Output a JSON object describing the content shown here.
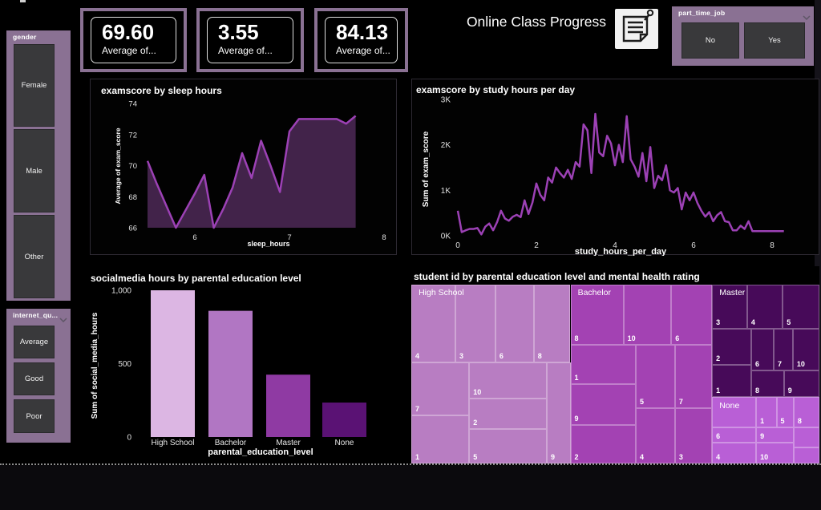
{
  "page": {
    "background": "#000000",
    "accent": "#8a7193",
    "line_purple": "#9c41b5",
    "area_fill": "#42234a"
  },
  "header": {
    "title": "Online Class Progress"
  },
  "kpis": [
    {
      "value": "69.60",
      "label": "Average of..."
    },
    {
      "value": "3.55",
      "label": "Average of..."
    },
    {
      "value": "84.13",
      "label": "Average of..."
    }
  ],
  "slicers": {
    "gender": {
      "label": "gender",
      "options": [
        "Female",
        "Male",
        "Other"
      ]
    },
    "internet_quality": {
      "label": "internet_qu...",
      "options": [
        "Average",
        "Good",
        "Poor"
      ]
    },
    "part_time_job": {
      "label": "part_time_job",
      "options": [
        "No",
        "Yes"
      ]
    }
  },
  "chart_data": [
    {
      "id": "sleep",
      "type": "area",
      "title": "examscore by sleep hours",
      "xlabel": "sleep_hours",
      "ylabel": "Average of exam_score",
      "xticks": [
        6,
        7,
        8
      ],
      "yticks": [
        66,
        68,
        70,
        72,
        74
      ],
      "xlim": [
        5.45,
        8.05
      ],
      "ylim": [
        66,
        74
      ],
      "line_color": "#9c41b5",
      "fill_color": "#42234a",
      "points": [
        [
          5.5,
          70.3
        ],
        [
          5.6,
          68.8
        ],
        [
          5.7,
          67.4
        ],
        [
          5.8,
          66.0
        ],
        [
          5.9,
          67.1
        ],
        [
          6.0,
          68.2
        ],
        [
          6.1,
          69.4
        ],
        [
          6.2,
          66.0
        ],
        [
          6.3,
          67.2
        ],
        [
          6.4,
          68.6
        ],
        [
          6.5,
          70.8
        ],
        [
          6.6,
          69.2
        ],
        [
          6.7,
          71.6
        ],
        [
          6.8,
          70.0
        ],
        [
          6.9,
          68.3
        ],
        [
          7.0,
          72.2
        ],
        [
          7.1,
          73.0
        ],
        [
          7.2,
          73.0
        ],
        [
          7.3,
          73.0
        ],
        [
          7.4,
          73.0
        ],
        [
          7.5,
          73.0
        ],
        [
          7.6,
          72.7
        ],
        [
          7.7,
          73.2
        ]
      ]
    },
    {
      "id": "study",
      "type": "line",
      "title": "examscore by study hours per day",
      "xlabel": "study_hours_per_day",
      "ylabel": "Sum of exam_score",
      "xticks": [
        0,
        2,
        4,
        6,
        8
      ],
      "yticks": [
        0,
        1,
        2,
        3
      ],
      "ytick_labels": [
        "0K",
        "1K",
        "2K",
        "3K"
      ],
      "xlim": [
        0,
        8.3
      ],
      "ylim": [
        0,
        3.1
      ],
      "line_color": "#9c41b5",
      "points": [
        [
          0,
          0.55
        ],
        [
          0.1,
          0.08
        ],
        [
          0.2,
          0.12
        ],
        [
          0.3,
          0.15
        ],
        [
          0.4,
          0.15
        ],
        [
          0.5,
          0.17
        ],
        [
          0.6,
          0.03
        ],
        [
          0.7,
          0.2
        ],
        [
          0.8,
          0.27
        ],
        [
          0.9,
          0.12
        ],
        [
          1,
          0.3
        ],
        [
          1.1,
          0.55
        ],
        [
          1.2,
          0.38
        ],
        [
          1.3,
          0.33
        ],
        [
          1.4,
          0.42
        ],
        [
          1.5,
          0.46
        ],
        [
          1.6,
          0.41
        ],
        [
          1.7,
          0.78
        ],
        [
          1.8,
          0.48
        ],
        [
          1.9,
          0.73
        ],
        [
          2,
          1.15
        ],
        [
          2.1,
          0.9
        ],
        [
          2.2,
          0.78
        ],
        [
          2.3,
          1.28
        ],
        [
          2.4,
          1.17
        ],
        [
          2.5,
          1.5
        ],
        [
          2.6,
          1.38
        ],
        [
          2.7,
          1.28
        ],
        [
          2.8,
          1.45
        ],
        [
          2.9,
          1.25
        ],
        [
          3,
          1.62
        ],
        [
          3.1,
          1.52
        ],
        [
          3.2,
          2.45
        ],
        [
          3.3,
          2.32
        ],
        [
          3.4,
          1.38
        ],
        [
          3.5,
          2.68
        ],
        [
          3.6,
          1.83
        ],
        [
          3.7,
          1.75
        ],
        [
          3.8,
          2.2
        ],
        [
          3.9,
          2.03
        ],
        [
          4,
          1.55
        ],
        [
          4.1,
          2.0
        ],
        [
          4.2,
          1.62
        ],
        [
          4.3,
          2.63
        ],
        [
          4.4,
          1.68
        ],
        [
          4.5,
          1.52
        ],
        [
          4.6,
          1.3
        ],
        [
          4.7,
          1.82
        ],
        [
          4.8,
          1.2
        ],
        [
          4.9,
          1.95
        ],
        [
          5,
          1.05
        ],
        [
          5.1,
          1.32
        ],
        [
          5.2,
          1.22
        ],
        [
          5.3,
          1.55
        ],
        [
          5.4,
          1.0
        ],
        [
          5.5,
          0.95
        ],
        [
          5.6,
          1.05
        ],
        [
          5.7,
          0.58
        ],
        [
          5.8,
          0.95
        ],
        [
          5.9,
          0.78
        ],
        [
          6,
          0.95
        ],
        [
          6.1,
          0.72
        ],
        [
          6.2,
          0.55
        ],
        [
          6.3,
          0.42
        ],
        [
          6.4,
          0.52
        ],
        [
          6.5,
          0.32
        ],
        [
          6.6,
          0.45
        ],
        [
          6.7,
          0.52
        ],
        [
          6.8,
          0.32
        ],
        [
          6.9,
          0.3
        ],
        [
          7,
          0.12
        ],
        [
          7.1,
          0.12
        ],
        [
          7.2,
          0.22
        ],
        [
          7.3,
          0.15
        ],
        [
          7.4,
          0.32
        ],
        [
          7.5,
          0.1
        ],
        [
          7.6,
          0.1
        ],
        [
          7.7,
          0.1
        ],
        [
          7.8,
          0.1
        ],
        [
          7.9,
          0.1
        ],
        [
          8,
          0.1
        ],
        [
          8.1,
          0.1
        ],
        [
          8.2,
          0.1
        ],
        [
          8.3,
          0.1
        ]
      ]
    },
    {
      "id": "bars",
      "type": "bar",
      "title": "socialmedia hours by parental education level",
      "xlabel": "parental_education_level",
      "ylabel": "Sum of social_media_hours",
      "categories": [
        "High School",
        "Bachelor",
        "Master",
        "None"
      ],
      "values": [
        1000,
        860,
        425,
        235
      ],
      "bar_colors": [
        "#dcb6e3",
        "#b176c3",
        "#8f3aa3",
        "#5a1274"
      ],
      "yticks": [
        0,
        500,
        1000
      ],
      "ytick_labels": [
        "0",
        "500",
        "1,000"
      ],
      "ylim": [
        0,
        1000
      ]
    },
    {
      "id": "treemap",
      "type": "treemap",
      "title": "student id by parental education level and mental health rating",
      "groups": [
        {
          "name": "High School",
          "color": "#b87dc2",
          "label_at": [
            0.8,
            0.5
          ],
          "cells": [
            {
              "l": "4",
              "x": 0,
              "y": 0,
              "w": 10.8,
              "h": 43.5
            },
            {
              "l": "3",
              "x": 10.8,
              "y": 0,
              "w": 9.8,
              "h": 43.5
            },
            {
              "l": "6",
              "x": 20.6,
              "y": 0,
              "w": 9.4,
              "h": 43.5
            },
            {
              "l": "8",
              "x": 30,
              "y": 0,
              "w": 9,
              "h": 43.5
            },
            {
              "l": "7",
              "x": 0,
              "y": 43.5,
              "w": 14.2,
              "h": 29.5
            },
            {
              "l": "1",
              "x": 0,
              "y": 73,
              "w": 14.2,
              "h": 27
            },
            {
              "l": "10",
              "x": 14.2,
              "y": 43.5,
              "w": 19,
              "h": 20
            },
            {
              "l": "2",
              "x": 14.2,
              "y": 63.5,
              "w": 19,
              "h": 17
            },
            {
              "l": "5",
              "x": 14.2,
              "y": 80.5,
              "w": 19,
              "h": 19.5
            },
            {
              "l": "9",
              "x": 33.2,
              "y": 43.5,
              "w": 5.8,
              "h": 56.5
            }
          ]
        },
        {
          "name": "Bachelor",
          "color": "#a342b3",
          "label_at": [
            39.8,
            0.5
          ],
          "cells": [
            {
              "l": "8",
              "x": 39,
              "y": 0,
              "w": 13,
              "h": 33.6
            },
            {
              "l": "10",
              "x": 52,
              "y": 0,
              "w": 11.7,
              "h": 33.6
            },
            {
              "l": "6",
              "x": 63.7,
              "y": 0,
              "w": 10,
              "h": 33.6
            },
            {
              "l": "1",
              "x": 39,
              "y": 33.6,
              "w": 16,
              "h": 22
            },
            {
              "l": "9",
              "x": 39,
              "y": 55.6,
              "w": 16,
              "h": 22.9
            },
            {
              "l": "2",
              "x": 39,
              "y": 78.5,
              "w": 16,
              "h": 21.5
            },
            {
              "l": "5",
              "x": 55,
              "y": 33.6,
              "w": 9.6,
              "h": 35.4
            },
            {
              "l": "7",
              "x": 64.6,
              "y": 33.6,
              "w": 9.1,
              "h": 35.4
            },
            {
              "l": "4",
              "x": 55,
              "y": 69,
              "w": 9.6,
              "h": 31
            },
            {
              "l": "3",
              "x": 64.6,
              "y": 69,
              "w": 9.1,
              "h": 31
            }
          ]
        },
        {
          "name": "Master",
          "color": "#470a59",
          "label_at": [
            74.5,
            0.5
          ],
          "cells": [
            {
              "l": "3",
              "x": 73.7,
              "y": 0,
              "w": 8.6,
              "h": 24.7
            },
            {
              "l": "4",
              "x": 82.3,
              "y": 0,
              "w": 8.7,
              "h": 24.7
            },
            {
              "l": "5",
              "x": 91,
              "y": 0,
              "w": 9,
              "h": 24.7
            },
            {
              "l": "2",
              "x": 73.7,
              "y": 24.7,
              "w": 9.6,
              "h": 20.3
            },
            {
              "l": "1",
              "x": 73.7,
              "y": 45,
              "w": 9.6,
              "h": 18
            },
            {
              "l": "6",
              "x": 83.3,
              "y": 24.7,
              "w": 5.5,
              "h": 23.3
            },
            {
              "l": "7",
              "x": 88.8,
              "y": 24.7,
              "w": 4.7,
              "h": 23.3
            },
            {
              "l": "10",
              "x": 93.5,
              "y": 24.7,
              "w": 6.5,
              "h": 23.3
            },
            {
              "l": "8",
              "x": 83.3,
              "y": 48,
              "w": 8,
              "h": 15
            },
            {
              "l": "9",
              "x": 91.3,
              "y": 48,
              "w": 8.7,
              "h": 15
            }
          ]
        },
        {
          "name": "None",
          "color": "#b95fd6",
          "label_at": [
            74.5,
            63.5
          ],
          "cells": [
            {
              "l": "",
              "x": 73.7,
              "y": 63,
              "w": 10.8,
              "h": 17
            },
            {
              "l": "1",
              "x": 84.5,
              "y": 63,
              "w": 5,
              "h": 17
            },
            {
              "l": "5",
              "x": 89.5,
              "y": 63,
              "w": 4.2,
              "h": 17
            },
            {
              "l": "8",
              "x": 93.7,
              "y": 63,
              "w": 6.3,
              "h": 17
            },
            {
              "l": "6",
              "x": 73.7,
              "y": 80,
              "w": 10.8,
              "h": 8.5
            },
            {
              "l": "4",
              "x": 73.7,
              "y": 88.5,
              "w": 10.8,
              "h": 11.5
            },
            {
              "l": "9",
              "x": 84.5,
              "y": 80,
              "w": 9.2,
              "h": 8.5
            },
            {
              "l": "10",
              "x": 84.5,
              "y": 88.5,
              "w": 9.2,
              "h": 11.5
            },
            {
              "l": "",
              "x": 93.7,
              "y": 80,
              "w": 6.3,
              "h": 11
            },
            {
              "l": "",
              "x": 93.7,
              "y": 91,
              "w": 6.3,
              "h": 9
            }
          ]
        }
      ]
    }
  ]
}
